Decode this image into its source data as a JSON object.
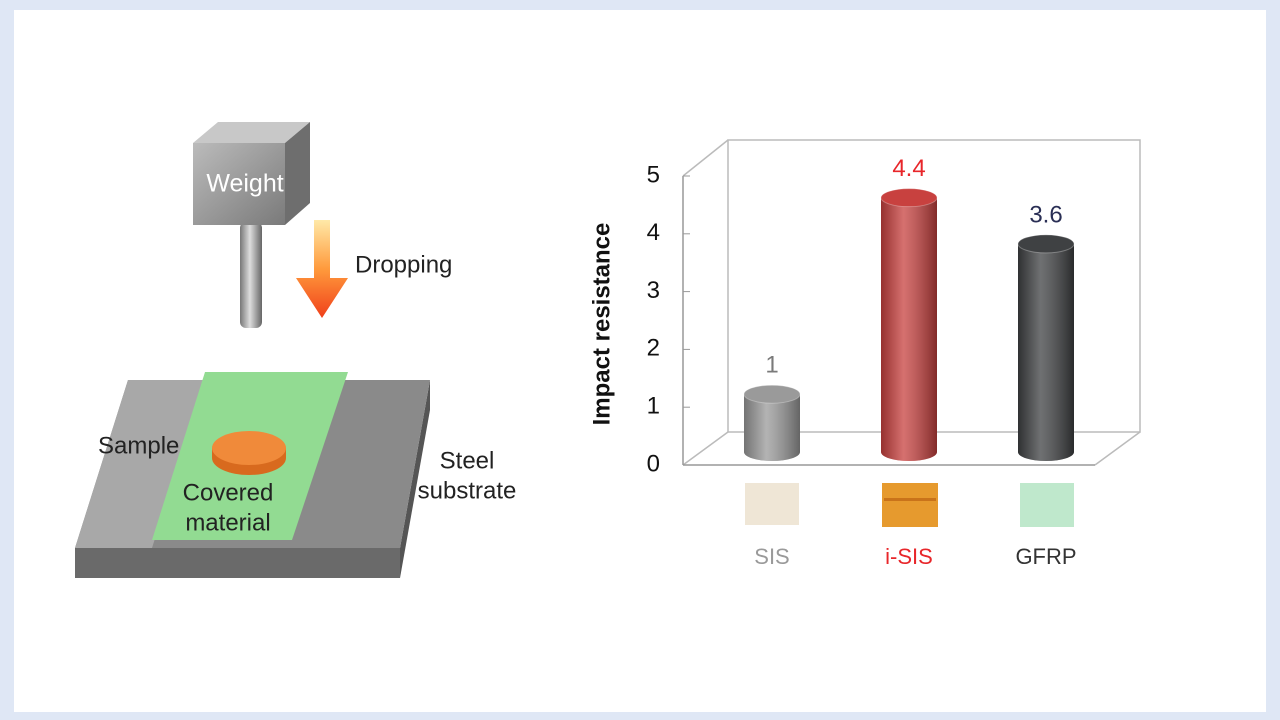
{
  "diagram": {
    "weight": "Weight",
    "dropping": "Dropping",
    "sample": "Sample",
    "covered_material": [
      "Covered",
      "material"
    ],
    "steel_substrate": [
      "Steel",
      "substrate"
    ]
  },
  "chart_data": {
    "type": "bar",
    "ylabel": "Impact resistance",
    "categories": [
      "SIS",
      "i-SIS",
      "GFRP"
    ],
    "values": [
      1,
      4.4,
      3.6
    ],
    "colors": [
      "#9a9a9a",
      "#c8413f",
      "#3f4143"
    ],
    "label_colors": [
      "#7a7a7a",
      "#e8262a",
      "#2a2f55"
    ],
    "category_colors": [
      "#9a9a9a",
      "#e8262a",
      "#333333"
    ],
    "ylim": [
      0,
      5
    ],
    "yticks": [
      0,
      1,
      2,
      3,
      4,
      5
    ]
  }
}
